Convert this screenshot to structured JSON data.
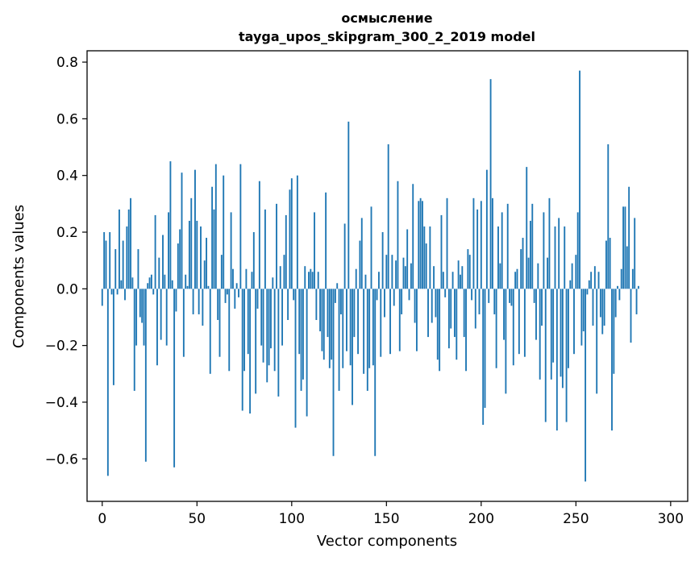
{
  "chart_data": {
    "type": "bar",
    "title": "осмысление",
    "subtitle": "tayga_upos_skipgram_300_2_2019 model",
    "xlabel": "Vector components",
    "ylabel": "Components values",
    "xlim": [
      -8,
      309
    ],
    "ylim": [
      -0.75,
      0.84
    ],
    "xticks": [
      0,
      50,
      100,
      150,
      200,
      250,
      300
    ],
    "xtick_labels": [
      "0",
      "50",
      "100",
      "150",
      "200",
      "250",
      "300"
    ],
    "yticks": [
      -0.6,
      -0.4,
      -0.2,
      0.0,
      0.2,
      0.4,
      0.6,
      0.8
    ],
    "ytick_labels": [
      "−0.6",
      "−0.4",
      "−0.2",
      "0.0",
      "0.2",
      "0.4",
      "0.6",
      "0.8"
    ],
    "bar_color": "#1f77b4",
    "x_start": 0,
    "values": [
      -0.06,
      0.2,
      0.17,
      -0.66,
      0.2,
      -0.02,
      -0.34,
      0.14,
      -0.02,
      0.28,
      0.03,
      0.17,
      -0.04,
      0.22,
      0.28,
      0.32,
      0.04,
      -0.36,
      -0.2,
      0.14,
      -0.1,
      -0.12,
      -0.2,
      -0.61,
      0.02,
      0.04,
      0.05,
      -0.02,
      0.26,
      -0.27,
      0.11,
      -0.18,
      0.19,
      0.05,
      -0.2,
      0.27,
      0.45,
      0.03,
      -0.63,
      -0.08,
      0.16,
      0.21,
      0.41,
      -0.24,
      0.05,
      0.01,
      0.24,
      0.32,
      -0.09,
      0.42,
      0.24,
      -0.09,
      0.22,
      -0.13,
      0.1,
      0.18,
      0.01,
      -0.3,
      0.36,
      0.28,
      0.44,
      -0.11,
      -0.24,
      0.12,
      0.4,
      -0.05,
      -0.02,
      -0.29,
      0.27,
      0.07,
      -0.07,
      0.02,
      -0.03,
      0.44,
      -0.43,
      -0.29,
      0.07,
      -0.23,
      -0.44,
      0.06,
      0.2,
      -0.37,
      -0.07,
      0.38,
      -0.2,
      -0.26,
      0.28,
      -0.33,
      -0.27,
      -0.21,
      0.04,
      -0.29,
      0.3,
      -0.38,
      0.08,
      -0.2,
      0.12,
      0.26,
      -0.11,
      0.35,
      0.39,
      -0.04,
      -0.49,
      0.4,
      -0.23,
      -0.36,
      -0.32,
      0.08,
      -0.45,
      0.06,
      0.07,
      0.06,
      0.27,
      -0.11,
      0.06,
      -0.15,
      -0.22,
      -0.25,
      0.34,
      -0.17,
      -0.28,
      -0.25,
      -0.59,
      -0.05,
      0.02,
      -0.36,
      -0.09,
      -0.28,
      0.23,
      -0.22,
      0.59,
      -0.27,
      -0.41,
      -0.17,
      0.07,
      -0.23,
      0.17,
      0.25,
      -0.3,
      0.05,
      -0.36,
      -0.28,
      0.29,
      -0.27,
      -0.59,
      -0.04,
      0.06,
      -0.24,
      0.2,
      -0.1,
      0.12,
      0.51,
      -0.23,
      0.12,
      -0.06,
      0.1,
      0.38,
      -0.22,
      -0.09,
      0.11,
      0.08,
      0.21,
      -0.04,
      0.09,
      0.37,
      -0.12,
      -0.22,
      0.31,
      0.32,
      0.31,
      0.22,
      0.16,
      -0.17,
      0.22,
      -0.12,
      0.08,
      -0.1,
      -0.25,
      -0.29,
      0.26,
      0.06,
      -0.03,
      0.32,
      -0.21,
      -0.14,
      0.06,
      -0.17,
      -0.25,
      0.1,
      0.05,
      0.08,
      -0.17,
      -0.29,
      0.14,
      0.12,
      -0.04,
      0.32,
      -0.14,
      0.28,
      -0.09,
      0.31,
      -0.48,
      -0.42,
      0.42,
      -0.05,
      0.74,
      0.32,
      -0.09,
      -0.28,
      0.22,
      0.09,
      0.27,
      -0.18,
      -0.37,
      0.3,
      -0.05,
      -0.06,
      -0.27,
      0.06,
      0.07,
      -0.23,
      0.14,
      0.18,
      -0.24,
      0.43,
      0.11,
      0.24,
      0.3,
      -0.05,
      -0.18,
      0.09,
      -0.32,
      -0.13,
      0.27,
      -0.47,
      0.11,
      0.32,
      -0.32,
      -0.26,
      0.22,
      -0.5,
      0.25,
      -0.31,
      -0.35,
      0.22,
      -0.47,
      -0.28,
      0.03,
      0.09,
      -0.23,
      0.12,
      0.27,
      0.77,
      -0.2,
      -0.15,
      -0.68,
      -0.02,
      0.03,
      0.06,
      -0.13,
      0.08,
      -0.37,
      0.06,
      -0.1,
      -0.16,
      -0.13,
      0.17,
      0.51,
      0.18,
      -0.5,
      -0.3,
      -0.1,
      0.01,
      -0.04,
      0.07,
      0.29,
      0.29,
      0.15,
      0.36,
      -0.19,
      0.07,
      0.25,
      -0.09,
      0.01
    ]
  }
}
